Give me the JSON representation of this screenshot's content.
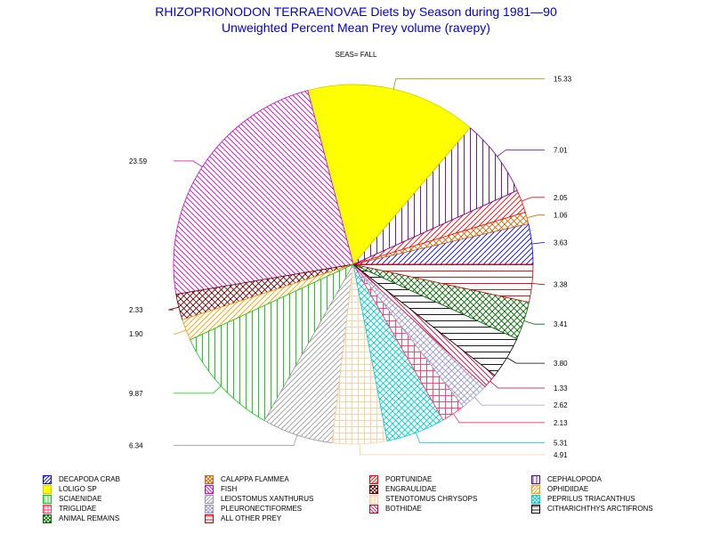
{
  "title": {
    "line1": "RHIZOPRIONODON TERRAENOVAE Diets by Season during 1981—90",
    "line2": "Unweighted Percent Mean Prey volume (ravepy)"
  },
  "subplot_label": "SEAS= FALL",
  "chart_data": {
    "type": "pie",
    "title": "RHIZOPRIONODON TERRAENOVAE Diets by Season during 1981—90",
    "subtitle": "Unweighted Percent Mean Prey volume (ravepy)",
    "slices": [
      {
        "name": "DECAPODA CRAB",
        "value": 3.63,
        "label": "3.63",
        "color": "#0000ff",
        "pattern": "hatch-up"
      },
      {
        "name": "CALAPPA FLAMMEA",
        "value": 1.06,
        "label": "1.06",
        "color": "#cc6600",
        "pattern": "crosshatch"
      },
      {
        "name": "PORTUNIDAE",
        "value": 2.05,
        "label": "2.05",
        "color": "#ff0000",
        "pattern": "hatch-up"
      },
      {
        "name": "CEPHALOPODA",
        "value": 7.01,
        "label": "7.01",
        "color": "#660099",
        "pattern": "vertical"
      },
      {
        "name": "LOLIGO SP",
        "value": 15.33,
        "label": "15.33",
        "color": "#ffff00",
        "pattern": "solid"
      },
      {
        "name": "FISH",
        "value": 23.59,
        "label": "23.59",
        "color": "#cc00cc",
        "pattern": "hatch-down"
      },
      {
        "name": "ENGRAULIDAE",
        "value": 2.33,
        "label": "2.33",
        "color": "#660000",
        "pattern": "crosshatch"
      },
      {
        "name": "OPHIDIIDAE",
        "value": 1.9,
        "label": "1.90",
        "color": "#ff9900",
        "pattern": "hatch-up"
      },
      {
        "name": "SCIAENIDAE",
        "value": 9.87,
        "label": "9.87",
        "color": "#00cc00",
        "pattern": "vertical"
      },
      {
        "name": "LEIOSTOMUS XANTHURUS",
        "value": 6.34,
        "label": "6.34",
        "color": "#999999",
        "pattern": "hatch-up"
      },
      {
        "name": "STENOTOMUS CHRYSOPS",
        "value": 4.91,
        "label": "4.91",
        "color": "#ffcc99",
        "pattern": "grid"
      },
      {
        "name": "PEPRILUS TRIACANTHUS",
        "value": 5.31,
        "label": "5.31",
        "color": "#00cccc",
        "pattern": "crosshatch"
      },
      {
        "name": "TRIGLIDAE",
        "value": 2.13,
        "label": "2.13",
        "color": "#ff3366",
        "pattern": "grid"
      },
      {
        "name": "PLEURONECTIFORMES",
        "value": 2.62,
        "label": "2.62",
        "color": "#9999cc",
        "pattern": "crosshatch"
      },
      {
        "name": "BOTHIDAE",
        "value": 1.33,
        "label": "1.33",
        "color": "#cc0033",
        "pattern": "hatch-down"
      },
      {
        "name": "CITHARICHTHYS ARCTIFRONS",
        "value": 3.8,
        "label": "3.80",
        "color": "#000000",
        "pattern": "horizontal"
      },
      {
        "name": "ANIMAL REMAINS",
        "value": 3.41,
        "label": "3.41",
        "color": "#006600",
        "pattern": "crosshatch"
      },
      {
        "name": "ALL OTHER PREY",
        "value": 3.38,
        "label": "3.38",
        "color": "#cc0000",
        "pattern": "horizontal"
      }
    ],
    "start_angle": "3 o'clock, counter-clockwise",
    "legend_placement": "bottom"
  }
}
